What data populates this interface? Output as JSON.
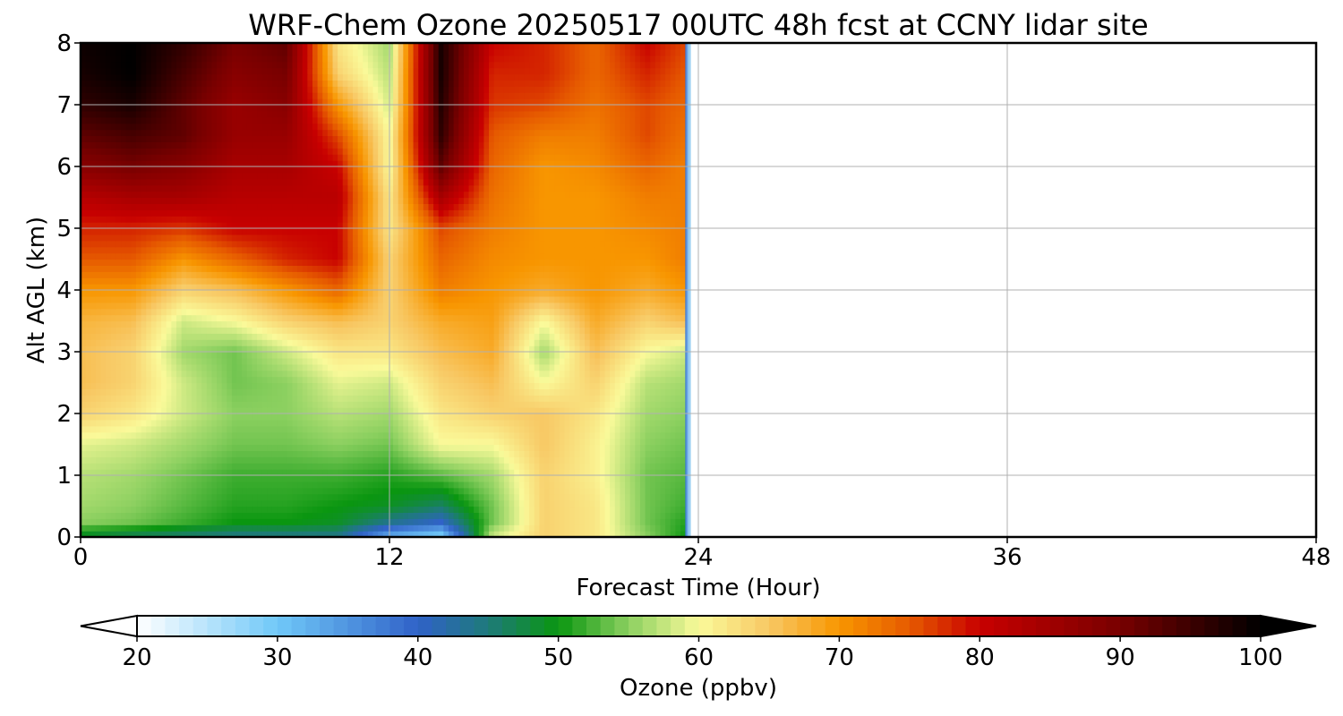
{
  "chart_data": {
    "type": "heatmap",
    "title": "WRF-Chem Ozone  20250517 00UTC 48h fcst at CCNY lidar site",
    "xlabel": "Forecast Time (Hour)",
    "ylabel": "Alt AGL (km)",
    "xlim": [
      0,
      48
    ],
    "ylim": [
      0,
      8
    ],
    "x_ticks": [
      0,
      12,
      24,
      36,
      48
    ],
    "y_ticks": [
      0,
      1,
      2,
      3,
      4,
      5,
      6,
      7,
      8
    ],
    "grid": true,
    "x": [
      0,
      2,
      4,
      6,
      8,
      10,
      12,
      14,
      16,
      18,
      20,
      22,
      23.5
    ],
    "y": [
      0,
      0.25,
      0.5,
      1,
      1.5,
      2,
      2.5,
      3,
      3.5,
      4,
      4.5,
      5,
      5.5,
      6,
      6.5,
      7,
      7.5,
      8
    ],
    "values": [
      [
        48,
        46,
        45,
        44,
        44,
        44,
        32,
        28,
        58,
        64,
        62,
        55,
        50
      ],
      [
        55,
        54,
        52,
        50,
        50,
        49,
        44,
        40,
        54,
        64,
        62,
        54,
        51
      ],
      [
        56,
        55,
        53,
        51,
        51,
        50,
        49,
        46,
        54,
        64,
        62,
        54,
        52
      ],
      [
        57,
        56,
        54,
        52,
        52,
        52,
        51,
        53,
        56,
        64,
        61,
        54,
        53
      ],
      [
        59,
        58,
        56,
        54,
        54,
        55,
        54,
        60,
        60,
        65,
        61,
        55,
        54
      ],
      [
        64,
        62,
        58,
        55,
        55,
        57,
        56,
        62,
        64,
        65,
        62,
        56,
        55
      ],
      [
        66,
        64,
        58,
        54,
        55,
        59,
        58,
        64,
        66,
        60,
        64,
        57,
        56
      ],
      [
        66,
        64,
        56,
        54,
        58,
        62,
        62,
        66,
        68,
        56,
        66,
        60,
        58
      ],
      [
        67,
        66,
        58,
        60,
        64,
        66,
        64,
        68,
        69,
        60,
        68,
        64,
        66
      ],
      [
        70,
        70,
        64,
        66,
        70,
        74,
        64,
        72,
        70,
        68,
        70,
        68,
        70
      ],
      [
        75,
        75,
        70,
        74,
        78,
        80,
        64,
        74,
        71,
        70,
        70,
        70,
        72
      ],
      [
        78,
        78,
        77,
        80,
        80,
        80,
        62,
        76,
        72,
        70,
        70,
        71,
        72
      ],
      [
        82,
        84,
        84,
        82,
        82,
        82,
        62,
        84,
        73,
        70,
        70,
        72,
        72
      ],
      [
        88,
        90,
        88,
        84,
        84,
        80,
        60,
        92,
        74,
        70,
        71,
        74,
        72
      ],
      [
        92,
        94,
        92,
        86,
        86,
        76,
        60,
        96,
        75,
        72,
        72,
        76,
        73
      ],
      [
        96,
        98,
        92,
        86,
        88,
        70,
        58,
        97,
        77,
        76,
        73,
        76,
        74
      ],
      [
        98,
        100,
        94,
        88,
        90,
        64,
        57,
        98,
        78,
        78,
        74,
        78,
        75
      ],
      [
        99,
        100,
        96,
        90,
        92,
        62,
        56,
        98,
        80,
        78,
        74,
        80,
        76
      ]
    ],
    "colorbar": {
      "label": "Ozone  (ppbv)",
      "min": 20,
      "max": 100,
      "ticks": [
        20,
        30,
        40,
        50,
        60,
        70,
        80,
        90,
        100
      ],
      "extend": "both",
      "color_stops": [
        {
          "v": 20,
          "c": "#ffffff"
        },
        {
          "v": 30,
          "c": "#70c8f8"
        },
        {
          "v": 40,
          "c": "#3062c8"
        },
        {
          "v": 45,
          "c": "#1e7a7a"
        },
        {
          "v": 50,
          "c": "#0a9610"
        },
        {
          "v": 55,
          "c": "#8cd060"
        },
        {
          "v": 60,
          "c": "#fafa9a"
        },
        {
          "v": 65,
          "c": "#f8c864"
        },
        {
          "v": 70,
          "c": "#f89600"
        },
        {
          "v": 75,
          "c": "#e65a00"
        },
        {
          "v": 80,
          "c": "#c80000"
        },
        {
          "v": 90,
          "c": "#780000"
        },
        {
          "v": 100,
          "c": "#000000"
        }
      ]
    }
  }
}
